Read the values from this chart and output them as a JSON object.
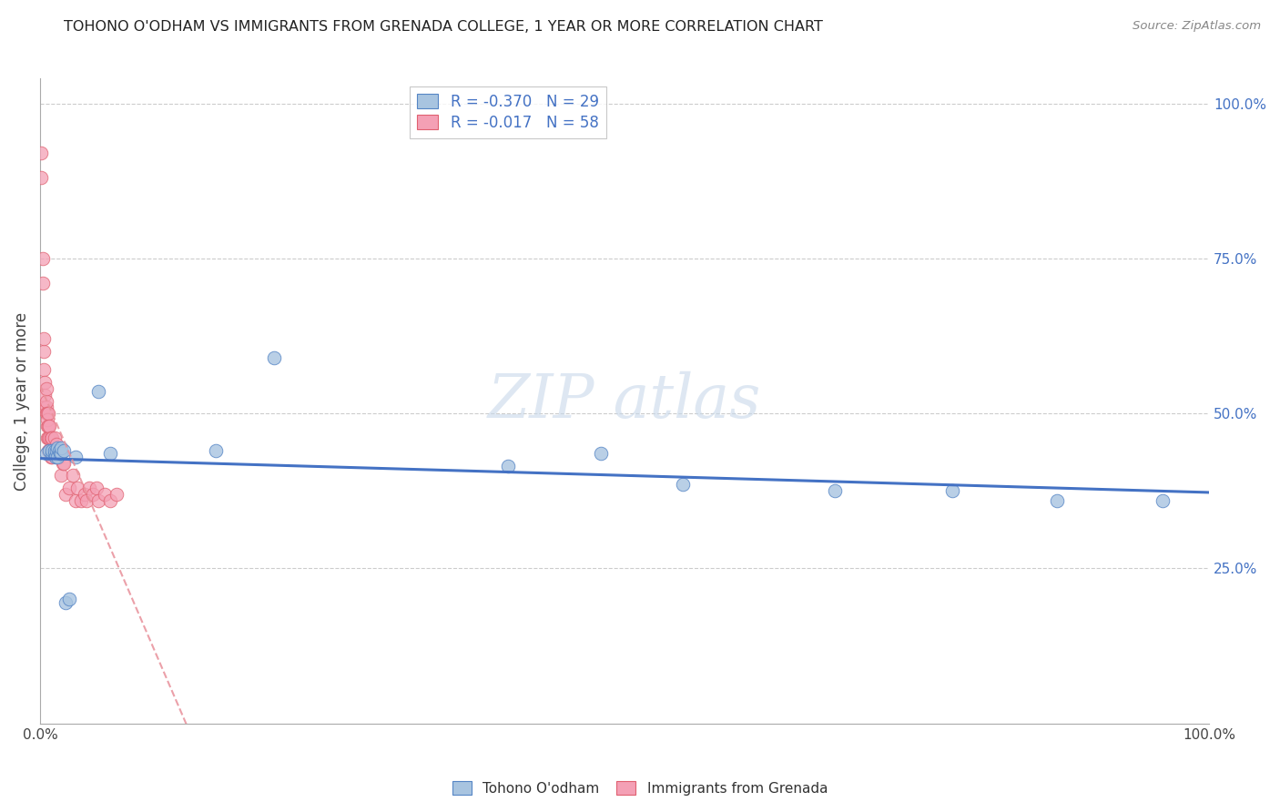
{
  "title": "TOHONO O'ODHAM VS IMMIGRANTS FROM GRENADA COLLEGE, 1 YEAR OR MORE CORRELATION CHART",
  "source": "Source: ZipAtlas.com",
  "blue_label": "Tohono O'odham",
  "pink_label": "Immigrants from Grenada",
  "ylabel": "College, 1 year or more",
  "blue_R": -0.37,
  "blue_N": 29,
  "pink_R": -0.017,
  "pink_N": 58,
  "blue_color": "#a8c4e0",
  "pink_color": "#f4a0b5",
  "blue_edge_color": "#5585c5",
  "pink_edge_color": "#e06070",
  "blue_line_color": "#4472c4",
  "pink_line_color": "#e8909a",
  "right_tick_color": "#4472c4",
  "grid_color": "#cccccc",
  "blue_scatter_x": [
    0.005,
    0.008,
    0.01,
    0.01,
    0.012,
    0.012,
    0.013,
    0.014,
    0.015,
    0.015,
    0.016,
    0.017,
    0.018,
    0.018,
    0.02,
    0.022,
    0.025,
    0.15,
    0.2,
    0.03,
    0.05,
    0.06,
    0.4,
    0.48,
    0.55,
    0.68,
    0.78,
    0.87,
    0.96
  ],
  "blue_scatter_y": [
    0.435,
    0.44,
    0.435,
    0.44,
    0.435,
    0.44,
    0.43,
    0.44,
    0.43,
    0.445,
    0.44,
    0.435,
    0.435,
    0.445,
    0.44,
    0.195,
    0.2,
    0.44,
    0.59,
    0.43,
    0.535,
    0.435,
    0.415,
    0.435,
    0.385,
    0.375,
    0.375,
    0.36,
    0.36
  ],
  "pink_scatter_x": [
    0.001,
    0.001,
    0.002,
    0.002,
    0.003,
    0.003,
    0.003,
    0.004,
    0.004,
    0.004,
    0.005,
    0.005,
    0.005,
    0.005,
    0.006,
    0.006,
    0.006,
    0.006,
    0.007,
    0.007,
    0.007,
    0.007,
    0.008,
    0.008,
    0.008,
    0.009,
    0.009,
    0.009,
    0.01,
    0.01,
    0.01,
    0.011,
    0.012,
    0.012,
    0.013,
    0.014,
    0.015,
    0.015,
    0.016,
    0.017,
    0.018,
    0.019,
    0.02,
    0.022,
    0.025,
    0.028,
    0.03,
    0.032,
    0.035,
    0.038,
    0.04,
    0.042,
    0.045,
    0.048,
    0.05,
    0.055,
    0.06,
    0.065
  ],
  "pink_scatter_y": [
    0.88,
    0.92,
    0.71,
    0.75,
    0.6,
    0.57,
    0.62,
    0.51,
    0.53,
    0.55,
    0.51,
    0.5,
    0.52,
    0.54,
    0.48,
    0.5,
    0.46,
    0.49,
    0.44,
    0.46,
    0.48,
    0.5,
    0.44,
    0.46,
    0.48,
    0.44,
    0.46,
    0.43,
    0.44,
    0.46,
    0.43,
    0.44,
    0.44,
    0.46,
    0.44,
    0.45,
    0.43,
    0.44,
    0.43,
    0.44,
    0.4,
    0.42,
    0.42,
    0.37,
    0.38,
    0.4,
    0.36,
    0.38,
    0.36,
    0.37,
    0.36,
    0.38,
    0.37,
    0.38,
    0.36,
    0.37,
    0.36,
    0.37
  ],
  "xlim": [
    0.0,
    1.0
  ],
  "ylim": [
    0.0,
    1.04
  ],
  "right_ytick_positions": [
    0.25,
    0.5,
    0.75,
    1.0
  ],
  "right_ytick_labels": [
    "25.0%",
    "50.0%",
    "75.0%",
    "100.0%"
  ],
  "figsize": [
    14.06,
    8.92
  ],
  "dpi": 100
}
